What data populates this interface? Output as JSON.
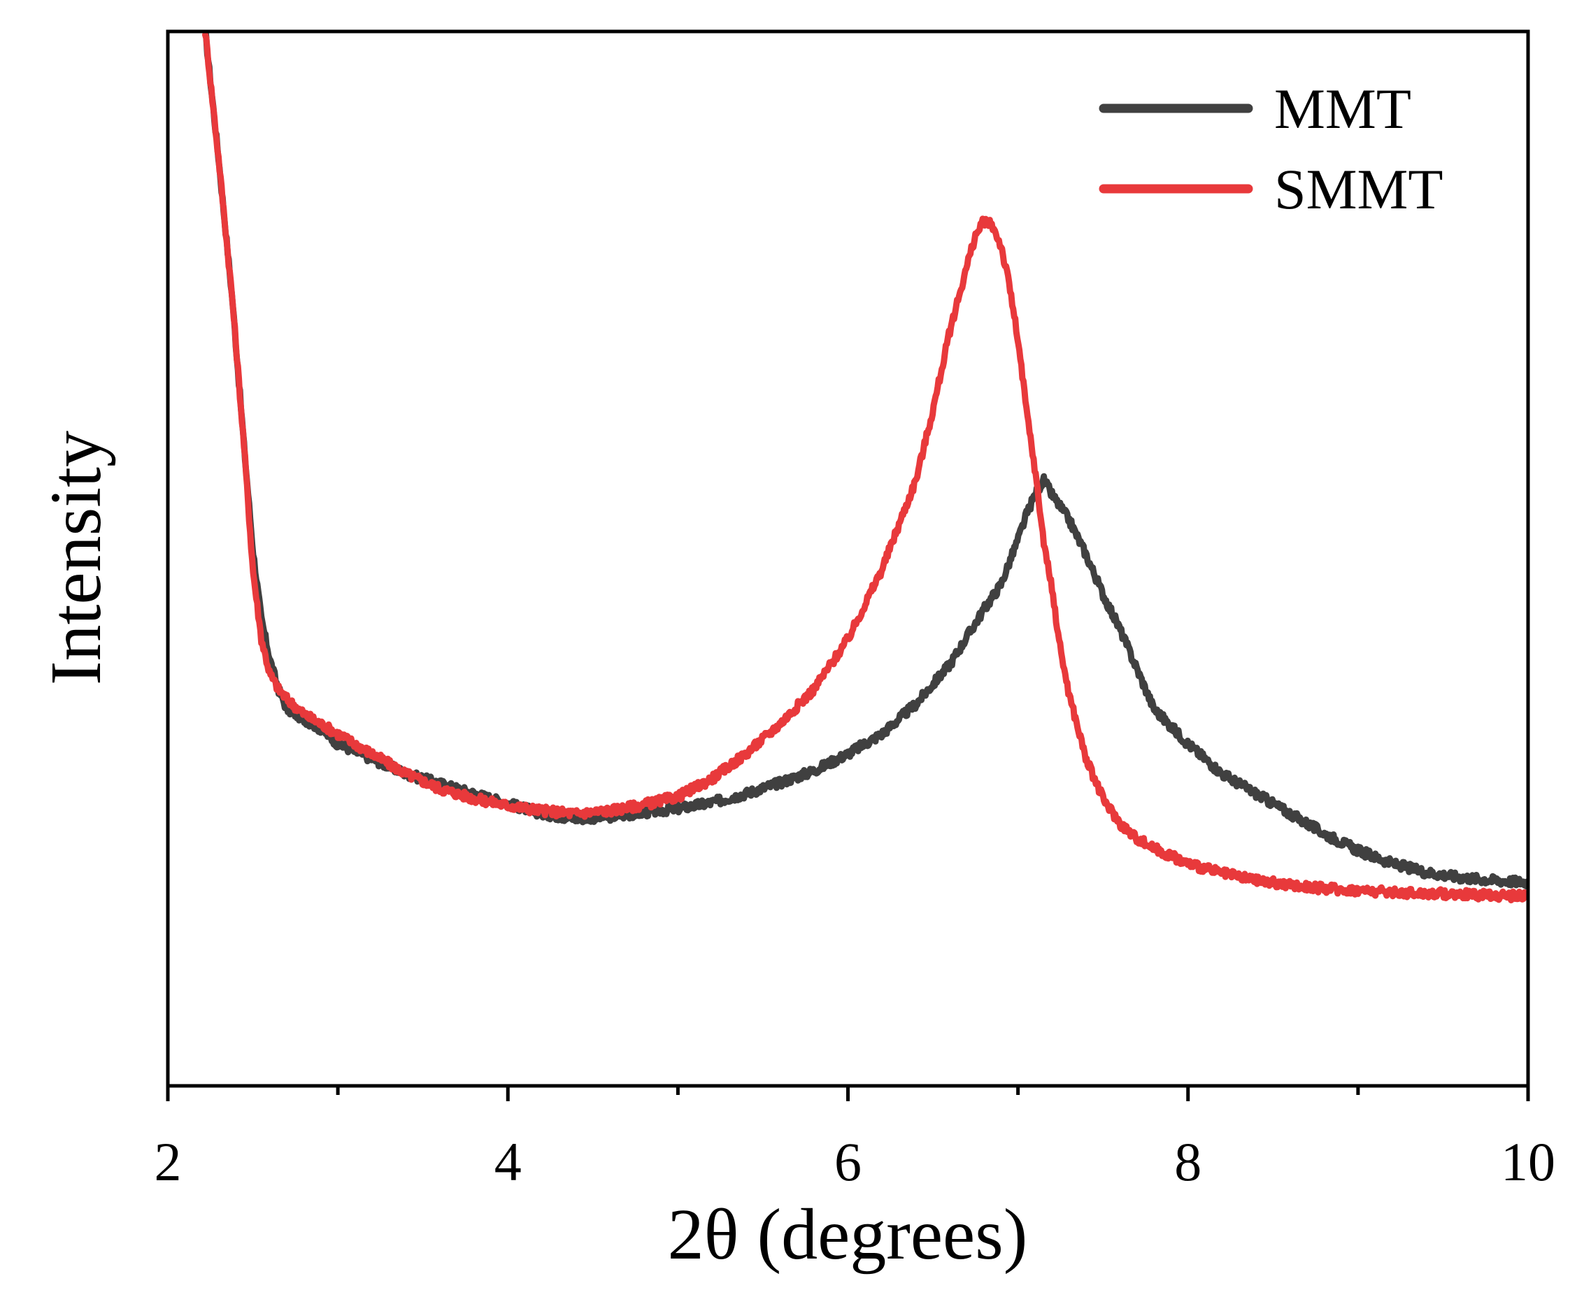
{
  "chart_data": {
    "type": "line",
    "title": "",
    "xlabel": "2θ (degrees)",
    "ylabel": "Intensity",
    "xlim": [
      2,
      10
    ],
    "ylim": [
      0,
      100
    ],
    "xticks_major": [
      2,
      4,
      6,
      8,
      10
    ],
    "xtick_labels": [
      "2",
      "4",
      "6",
      "8",
      "10"
    ],
    "xticks_minor": [
      3,
      5,
      7,
      9
    ],
    "yticks": [],
    "grid": false,
    "legend_position": "top-right",
    "series": [
      {
        "name": "MMT",
        "color": "#404040",
        "x": [
          2.22,
          2.3,
          2.38,
          2.45,
          2.5,
          2.55,
          2.6,
          2.65,
          2.7,
          2.8,
          2.9,
          3.0,
          3.2,
          3.4,
          3.6,
          3.8,
          4.0,
          4.2,
          4.4,
          4.6,
          4.8,
          5.0,
          5.2,
          5.4,
          5.6,
          5.8,
          6.0,
          6.2,
          6.4,
          6.6,
          6.8,
          6.9,
          7.0,
          7.05,
          7.1,
          7.15,
          7.2,
          7.3,
          7.4,
          7.5,
          7.6,
          7.7,
          7.8,
          8.0,
          8.2,
          8.4,
          8.6,
          8.8,
          9.0,
          9.2,
          9.4,
          9.6,
          9.8,
          10.0
        ],
        "y": [
          100,
          87,
          73,
          58,
          48,
          41,
          37,
          34,
          32,
          31,
          30,
          28.5,
          27,
          25.5,
          24.5,
          23.5,
          22.5,
          21.5,
          21.0,
          21.2,
          21.6,
          22.0,
          22.6,
          23.5,
          24.6,
          25.8,
          27.5,
          29.5,
          32.5,
          36.5,
          42.0,
          44.5,
          49.0,
          51.5,
          53.5,
          55.0,
          53.5,
          51.0,
          47.5,
          43.5,
          40.0,
          36.0,
          32.0,
          28.5,
          25.5,
          23.5,
          21.5,
          19.5,
          17.8,
          16.5,
          15.6,
          15.1,
          14.8,
          14.6
        ]
      },
      {
        "name": "SMMT",
        "color": "#e8393b",
        "x": [
          2.22,
          2.3,
          2.38,
          2.45,
          2.5,
          2.55,
          2.6,
          2.65,
          2.7,
          2.8,
          2.9,
          3.0,
          3.2,
          3.4,
          3.6,
          3.8,
          4.0,
          4.2,
          4.4,
          4.6,
          4.8,
          5.0,
          5.2,
          5.4,
          5.6,
          5.8,
          6.0,
          6.2,
          6.4,
          6.5,
          6.6,
          6.7,
          6.75,
          6.8,
          6.85,
          6.9,
          6.95,
          7.0,
          7.05,
          7.1,
          7.15,
          7.2,
          7.25,
          7.3,
          7.4,
          7.5,
          7.6,
          7.7,
          7.8,
          8.0,
          8.2,
          8.4,
          8.6,
          8.8,
          9.0,
          9.2,
          9.4,
          9.6,
          9.8,
          10.0
        ],
        "y": [
          100,
          87,
          73,
          58,
          46,
          39,
          35.5,
          34.0,
          33.0,
          31.5,
          30.5,
          29.5,
          27.5,
          25.5,
          24.0,
          23.0,
          22.3,
          21.8,
          21.5,
          21.8,
          22.4,
          23.2,
          25.0,
          27.5,
          30.5,
          34.0,
          39.0,
          46.0,
          55.0,
          62.0,
          70.0,
          76.5,
          79.5,
          81.0,
          80.5,
          78.5,
          74.5,
          69.0,
          62.0,
          56.0,
          49.0,
          44.0,
          38.0,
          33.5,
          27.0,
          23.0,
          20.5,
          19.0,
          18.0,
          16.5,
          15.5,
          14.8,
          14.3,
          14.0,
          13.8,
          13.6,
          13.5,
          13.4,
          13.3,
          13.2
        ]
      }
    ]
  }
}
